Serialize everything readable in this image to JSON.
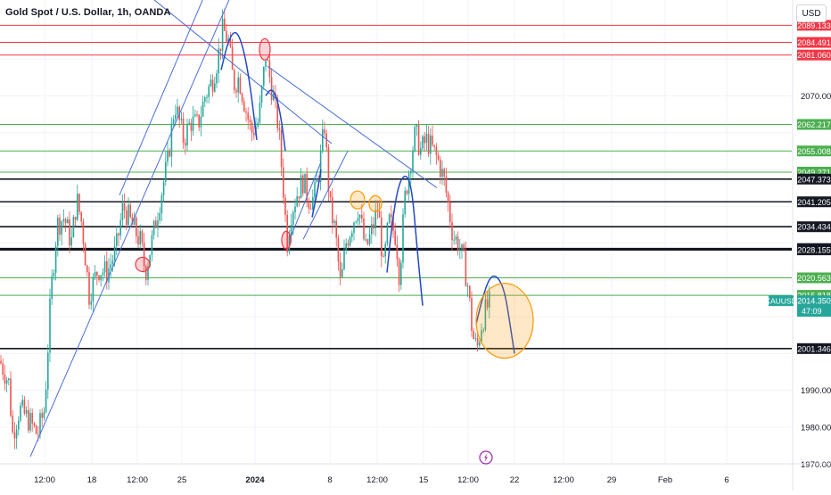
{
  "header": {
    "title": "Gold Spot / U.S. Dollar, 1h, OANDA",
    "currency": "USD"
  },
  "chart_data": {
    "type": "candlestick",
    "symbol": "XAUUSD",
    "title": "Gold Spot / U.S. Dollar, 1h, OANDA",
    "y_unit": "USD",
    "ylim": [
      1962.8,
      2096.0
    ],
    "y_ticks": [
      "2070.000",
      "1990.000",
      "1980.000",
      "1970.000"
    ],
    "x_ticks": [
      "12:00",
      "18",
      "12:00",
      "25",
      "2024",
      "8",
      "12:00",
      "15",
      "12:00",
      "22",
      "12:00",
      "29",
      "Feb",
      "6"
    ],
    "grid": true,
    "price_path": [
      [
        0,
        1998
      ],
      [
        10,
        1992
      ],
      [
        14,
        1978
      ],
      [
        22,
        1985
      ],
      [
        32,
        1982
      ],
      [
        42,
        1978
      ],
      [
        50,
        1985
      ],
      [
        57,
        2016
      ],
      [
        64,
        2035
      ],
      [
        72,
        2037
      ],
      [
        80,
        2030
      ],
      [
        86,
        2042
      ],
      [
        92,
        2035
      ],
      [
        100,
        2016
      ],
      [
        110,
        2023
      ],
      [
        120,
        2022
      ],
      [
        130,
        2028
      ],
      [
        138,
        2040
      ],
      [
        148,
        2035
      ],
      [
        158,
        2030
      ],
      [
        163,
        2022
      ],
      [
        170,
        2030
      ],
      [
        178,
        2040
      ],
      [
        188,
        2052
      ],
      [
        196,
        2068
      ],
      [
        206,
        2058
      ],
      [
        214,
        2063
      ],
      [
        222,
        2062
      ],
      [
        230,
        2070
      ],
      [
        238,
        2074
      ],
      [
        244,
        2080
      ],
      [
        250,
        2088
      ],
      [
        256,
        2085
      ],
      [
        262,
        2073
      ],
      [
        268,
        2075
      ],
      [
        276,
        2066
      ],
      [
        282,
        2060
      ],
      [
        290,
        2063
      ],
      [
        298,
        2081
      ],
      [
        304,
        2073
      ],
      [
        312,
        2062
      ],
      [
        318,
        2044
      ],
      [
        322,
        2030
      ],
      [
        326,
        2038
      ],
      [
        334,
        2044
      ],
      [
        340,
        2047
      ],
      [
        346,
        2042
      ],
      [
        352,
        2042
      ],
      [
        358,
        2050
      ],
      [
        364,
        2062
      ],
      [
        370,
        2040
      ],
      [
        376,
        2033
      ],
      [
        382,
        2018
      ],
      [
        388,
        2030
      ],
      [
        396,
        2036
      ],
      [
        402,
        2040
      ],
      [
        410,
        2028
      ],
      [
        418,
        2034
      ],
      [
        424,
        2040
      ],
      [
        430,
        2023
      ],
      [
        436,
        2036
      ],
      [
        444,
        2032
      ],
      [
        448,
        2021
      ],
      [
        454,
        2042
      ],
      [
        460,
        2052
      ],
      [
        466,
        2060
      ],
      [
        472,
        2055
      ],
      [
        478,
        2058
      ],
      [
        486,
        2055
      ],
      [
        492,
        2052
      ],
      [
        498,
        2047
      ],
      [
        503,
        2040
      ],
      [
        508,
        2032
      ],
      [
        514,
        2030
      ],
      [
        520,
        2025
      ],
      [
        525,
        2018
      ],
      [
        530,
        2005
      ],
      [
        535,
        2001
      ],
      [
        540,
        2008
      ],
      [
        545,
        2012
      ],
      [
        550,
        2014
      ]
    ],
    "horizontal_levels": [
      {
        "value": 2089.133,
        "color": "#f23645",
        "label": "2089.133"
      },
      {
        "value": 2084.491,
        "color": "#f23645",
        "label": "2084.491"
      },
      {
        "value": 2081.06,
        "color": "#f23645",
        "label": "2081.060"
      },
      {
        "value": 2062.217,
        "color": "#4caf50",
        "label": "2062.217"
      },
      {
        "value": 2055.008,
        "color": "#4caf50",
        "label": "2055.008"
      },
      {
        "value": 2049.271,
        "color": "#4caf50",
        "label": "2049.271"
      },
      {
        "value": 2047.373,
        "color": "#131722",
        "label": "2047.373"
      },
      {
        "value": 2041.205,
        "color": "#131722",
        "label": "2041.205"
      },
      {
        "value": 2034.434,
        "color": "#131722",
        "label": "2034.434"
      },
      {
        "value": 2028.515,
        "color": "#131722",
        "label": "2028.515"
      },
      {
        "value": 2028.155,
        "color": "#131722",
        "label": "2028.155"
      },
      {
        "value": 2020.563,
        "color": "#4caf50",
        "label": "2020.563"
      },
      {
        "value": 2015.818,
        "color": "#4caf50",
        "label": "2015.818"
      },
      {
        "value": 2001.346,
        "color": "#131722",
        "label": "2001.346"
      }
    ],
    "current_price": {
      "symbol": "XAUUSD",
      "price": "2014.350",
      "countdown": "47:09",
      "value": 2014.35,
      "color": "#26a69a"
    },
    "trendlines": [
      {
        "color": "#4a6fd8",
        "points": [
          [
            34,
            1972
          ],
          [
            300,
            2120
          ]
        ]
      },
      {
        "color": "#4a6fd8",
        "points": [
          [
            134,
            2043
          ],
          [
            345,
            2163
          ]
        ]
      },
      {
        "color": "#4a6fd8",
        "points": [
          [
            168,
            2097
          ],
          [
            372,
            2057
          ]
        ]
      },
      {
        "color": "#4a6fd8",
        "points": [
          [
            300,
            2078
          ],
          [
            490,
            2045
          ]
        ]
      },
      {
        "color": "#4a6fd8",
        "points": [
          [
            325,
            2031
          ],
          [
            360,
            2052
          ]
        ]
      },
      {
        "color": "#4a6fd8",
        "points": [
          [
            340,
            2031
          ],
          [
            390,
            2055
          ]
        ]
      }
    ],
    "arcs": [
      {
        "color": "#2448c8",
        "points": [
          [
            248,
            2077
          ],
          [
            256,
            2085
          ],
          [
            264,
            2088
          ],
          [
            272,
            2084
          ],
          [
            280,
            2074
          ],
          [
            288,
            2058
          ]
        ]
      },
      {
        "color": "#2448c8",
        "points": [
          [
            298,
            2070
          ],
          [
            304,
            2072
          ],
          [
            310,
            2070
          ],
          [
            316,
            2063
          ],
          [
            320,
            2055
          ]
        ]
      },
      {
        "color": "#2448c8",
        "points": [
          [
            350,
            2037
          ],
          [
            356,
            2044
          ],
          [
            360,
            2050
          ]
        ]
      },
      {
        "color": "#2448c8",
        "points": [
          [
            434,
            2022
          ],
          [
            440,
            2036
          ],
          [
            447,
            2046
          ],
          [
            455,
            2049
          ],
          [
            462,
            2045
          ],
          [
            468,
            2028
          ],
          [
            474,
            2013
          ]
        ]
      },
      {
        "color": "#2448c8",
        "points": [
          [
            534,
            2008
          ],
          [
            542,
            2016
          ],
          [
            550,
            2021
          ],
          [
            558,
            2021
          ],
          [
            566,
            2017
          ],
          [
            572,
            2008
          ],
          [
            577,
            2000
          ]
        ]
      }
    ],
    "circles": [
      {
        "color": "#f23645",
        "cx": 160,
        "cy": 2024.2,
        "rx": 8,
        "ry": 8
      },
      {
        "color": "#f23645",
        "cx": 297,
        "cy": 2082.6,
        "rx": 6,
        "ry": 12
      },
      {
        "color": "#f23645",
        "cx": 321,
        "cy": 2030.8,
        "rx": 5,
        "ry": 10
      },
      {
        "color": "#ff9800",
        "cx": 401,
        "cy": 2041.7,
        "rx": 8,
        "ry": 10
      },
      {
        "color": "#ff9800",
        "cx": 421,
        "cy": 2040.7,
        "rx": 7,
        "ry": 9
      },
      {
        "color": "#ff9800",
        "cx": 566,
        "cy": 2008.9,
        "rx": 32,
        "ry": 42
      }
    ],
    "event_marker": {
      "x": 545,
      "icon": "lightning-icon"
    }
  }
}
